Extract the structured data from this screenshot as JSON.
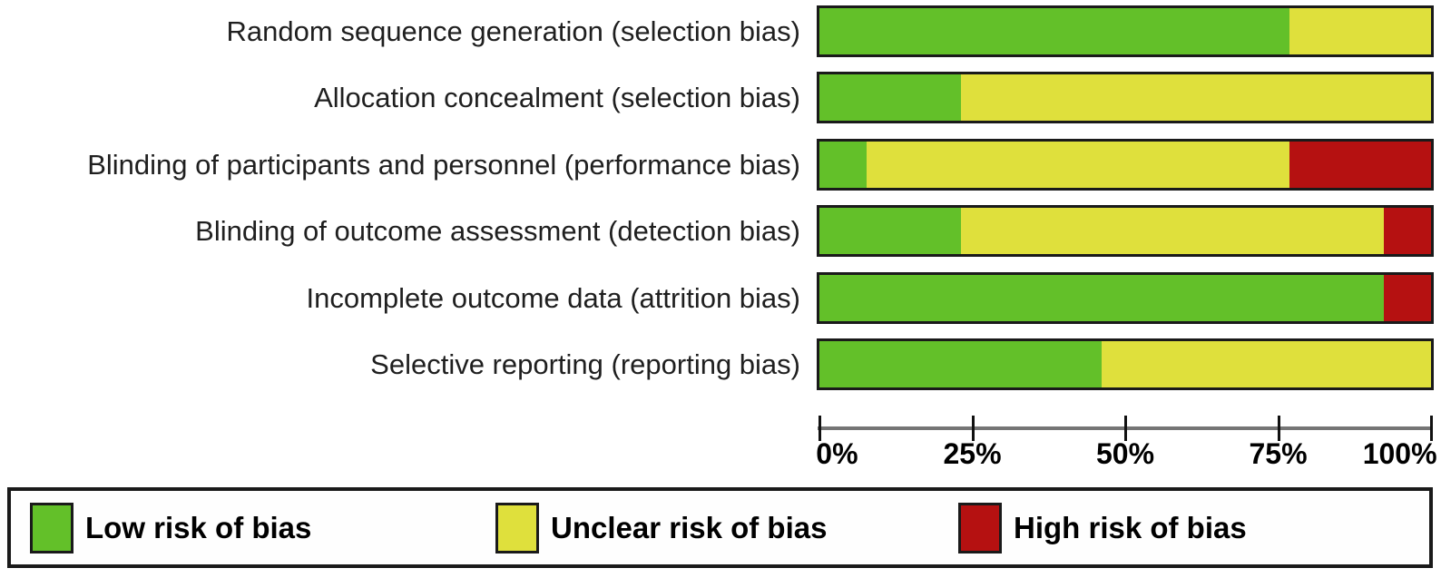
{
  "chart_data": {
    "type": "bar",
    "variant": "horizontal-stacked",
    "title": "",
    "xlabel": "",
    "ylabel": "",
    "xlim": [
      0,
      100
    ],
    "grid": false,
    "legend_position": "bottom",
    "x_ticks": [
      "0%",
      "25%",
      "50%",
      "75%",
      "100%"
    ],
    "categories": [
      "Random sequence generation (selection bias)",
      "Allocation concealment (selection bias)",
      "Blinding of participants and personnel (performance bias)",
      "Blinding of outcome assessment (detection bias)",
      "Incomplete outcome data (attrition bias)",
      "Selective reporting (reporting bias)"
    ],
    "series": [
      {
        "key": "low",
        "name": "Low risk of bias",
        "color": "#63C029",
        "values": [
          76.9,
          23.1,
          7.7,
          23.1,
          92.3,
          46.2
        ]
      },
      {
        "key": "unclear",
        "name": "Unclear risk of bias",
        "color": "#DFE03C",
        "values": [
          23.1,
          76.9,
          69.2,
          69.2,
          0,
          53.8
        ]
      },
      {
        "key": "high",
        "name": "High risk of bias",
        "color": "#B51111",
        "values": [
          0,
          0,
          23.1,
          7.7,
          7.7,
          0
        ]
      }
    ]
  },
  "legend": {
    "items": [
      {
        "key": "low",
        "label": "Low risk of bias",
        "color": "#63C029"
      },
      {
        "key": "unclear",
        "label": "Unclear risk of bias",
        "color": "#DFE03C"
      },
      {
        "key": "high",
        "label": "High risk of bias",
        "color": "#B51111"
      }
    ]
  },
  "colors": {
    "low": "#63C029",
    "unclear": "#DFE03C",
    "high": "#B51111",
    "axis_line": "#757575",
    "bar_border": "#1A1A1A",
    "text": "#1F1F1F",
    "background": "#FFFFFF"
  }
}
